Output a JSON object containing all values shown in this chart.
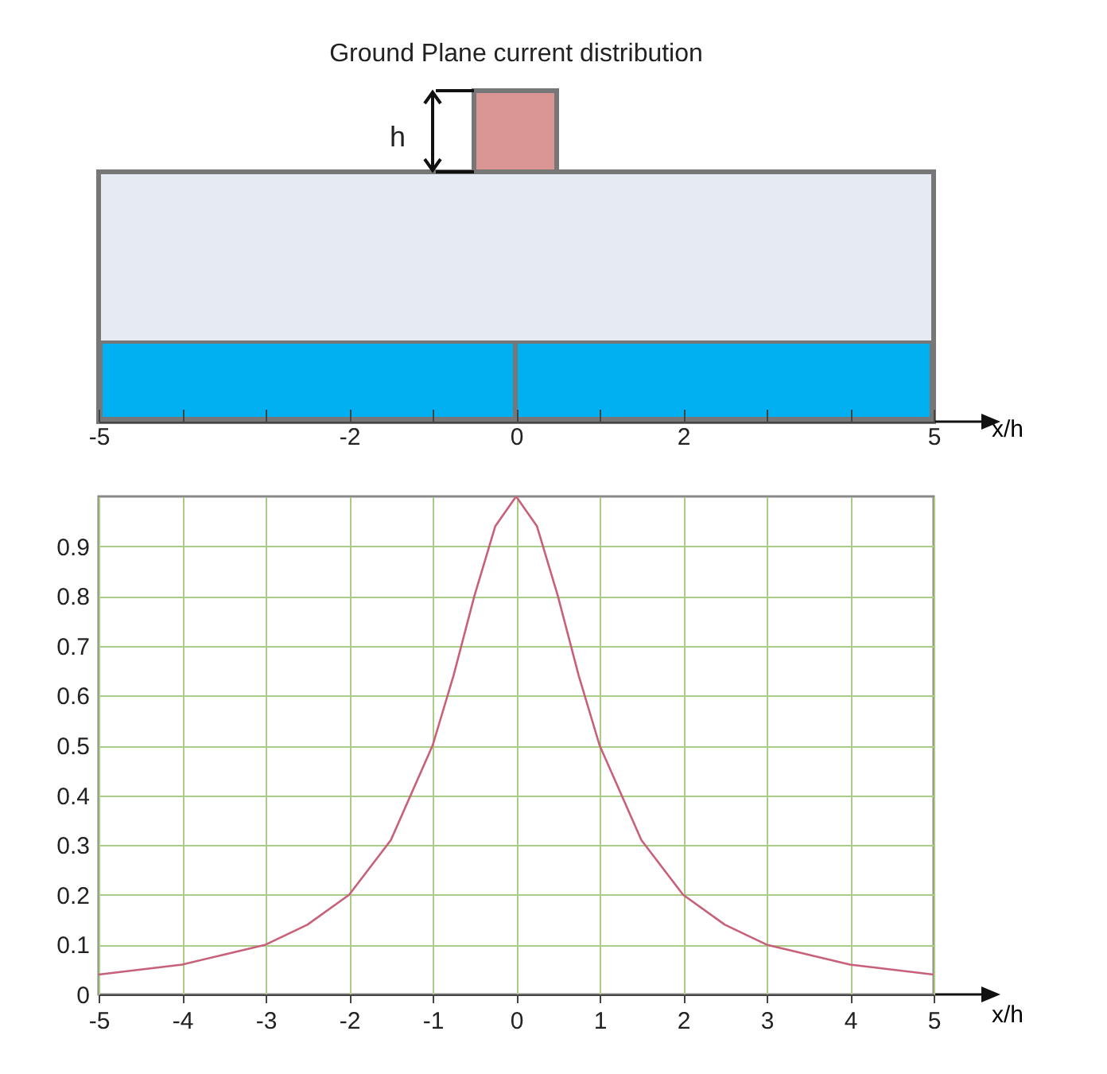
{
  "chart_data": {
    "type": "line",
    "title": "Ground Plane current distribution",
    "xlabel": "x/h",
    "x2label": "x/h",
    "annotations": [
      "h"
    ],
    "x": [
      -5,
      -4.5,
      -4,
      -3.5,
      -3,
      -2.5,
      -2,
      -1.5,
      -1,
      -0.75,
      -0.5,
      -0.25,
      0,
      0.25,
      0.5,
      0.75,
      1,
      1.5,
      2,
      2.5,
      3,
      3.5,
      4,
      4.5,
      5
    ],
    "series": [
      {
        "color": "#c8607a",
        "values": [
          0.04,
          0.05,
          0.06,
          0.08,
          0.1,
          0.14,
          0.2,
          0.31,
          0.5,
          0.64,
          0.8,
          0.94,
          1,
          0.94,
          0.8,
          0.64,
          0.5,
          0.31,
          0.2,
          0.14,
          0.1,
          0.08,
          0.06,
          0.05,
          0.04
        ]
      }
    ],
    "xlim": [
      -5,
      5
    ],
    "xticks": [
      -5,
      -4,
      -3,
      -2,
      -1,
      0,
      1,
      2,
      3,
      4,
      5
    ],
    "x2lim": [
      -5,
      5
    ],
    "x2ticks": [
      -5,
      {
        "value": -4,
        "label": null
      },
      {
        "value": -3,
        "label": null
      },
      -2,
      {
        "value": -1,
        "label": null
      },
      0,
      {
        "value": 1,
        "label": null
      },
      2,
      {
        "value": 3,
        "label": null
      },
      {
        "value": 4,
        "label": null
      },
      5
    ],
    "ylim": [
      0,
      1
    ],
    "yticks": [
      0,
      0.1,
      0.2,
      0.3,
      0.4,
      0.5,
      0.6,
      0.7,
      0.8,
      0.9
    ],
    "grid": true,
    "marker": "none",
    "line_style": "solid"
  }
}
